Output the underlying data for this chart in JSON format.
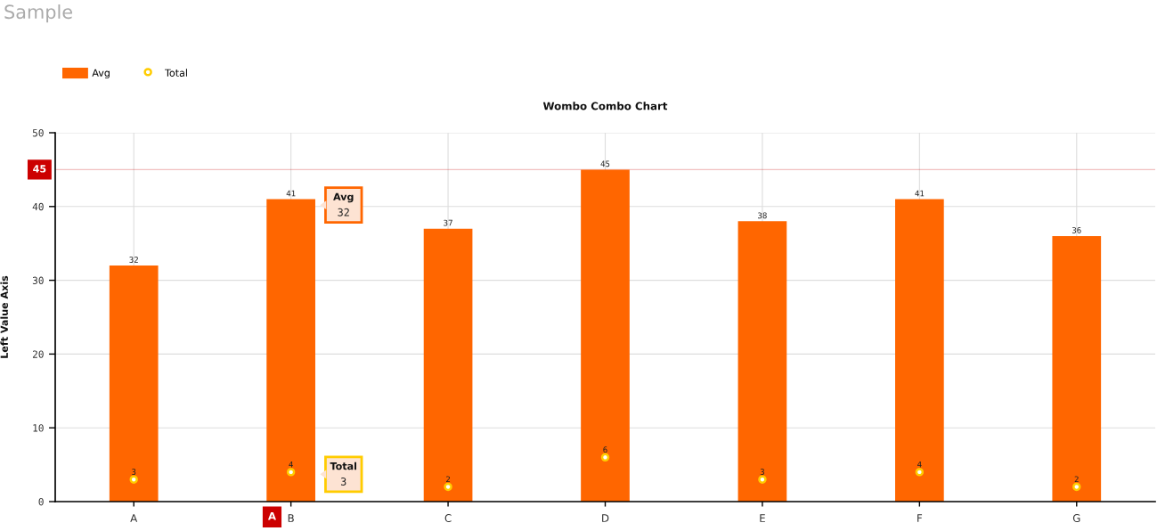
{
  "chart_data": {
    "type": "bar",
    "title": "Sample",
    "subtitle": "Wombo Combo Chart",
    "ylabel": "Left Value Axis",
    "categories": [
      "A",
      "B",
      "C",
      "D",
      "E",
      "F",
      "G"
    ],
    "series": [
      {
        "name": "Avg",
        "color": "#ff6600",
        "values": [
          32,
          41,
          37,
          45,
          38,
          41,
          36
        ]
      },
      {
        "name": "Total",
        "type": "scatter",
        "color": "#ffcc00",
        "values": [
          3,
          4,
          2,
          6,
          3,
          4,
          2
        ]
      }
    ],
    "ylim": [
      0,
      50
    ],
    "yticks": [
      0,
      10,
      20,
      30,
      40,
      50
    ],
    "grid": true,
    "legend": "top left",
    "marker": "circle",
    "data_labels": true,
    "ref_lines": [
      {
        "axis": "y",
        "value": 45,
        "label": "45",
        "color": "#cc0000"
      }
    ],
    "annotations": [
      "Avg\n32",
      "Total\n3",
      "A"
    ]
  }
}
